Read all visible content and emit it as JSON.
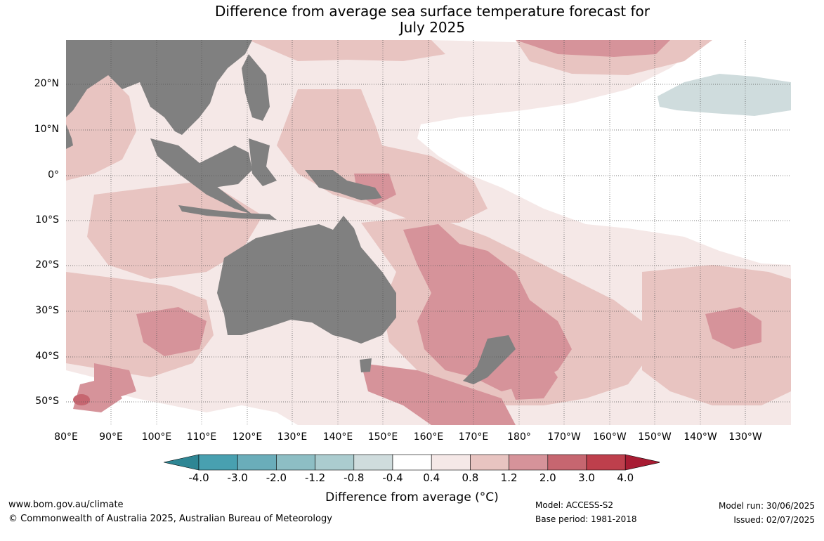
{
  "title_line1": "Difference from average sea surface temperature forecast for",
  "title_line2": "July 2025",
  "lat_labels": [
    "20°N",
    "10°N",
    "0°",
    "10°S",
    "20°S",
    "30°S",
    "40°S",
    "50°S"
  ],
  "lon_labels": [
    "80°E",
    "90°E",
    "100°E",
    "110°E",
    "120°E",
    "130°E",
    "140°E",
    "150°E",
    "160°E",
    "170°E",
    "180°",
    "170°W",
    "160°W",
    "150°W",
    "140°W",
    "130°W"
  ],
  "colorbar": {
    "ticks": [
      "-4.0",
      "-3.0",
      "-2.0",
      "-1.2",
      "-0.8",
      "-0.4",
      "0.4",
      "0.8",
      "1.2",
      "2.0",
      "3.0",
      "4.0"
    ],
    "colors": [
      "#2e8694",
      "#48a0b0",
      "#6aadba",
      "#8dbec4",
      "#abcccf",
      "#cfdcdd",
      "#ffffff",
      "#f5e8e7",
      "#e8c4c1",
      "#d6939a",
      "#c66670",
      "#be3f4c",
      "#a81c33"
    ],
    "label": "Difference from average (°C)"
  },
  "map_colors": {
    "land": "#808080",
    "neutral": "#ffffff",
    "warm_slight": "#f5e8e7",
    "warm_moderate": "#e8c4c1",
    "warm_strong": "#d6939a",
    "warm_very_strong": "#c66670",
    "cool_slight": "#cfdcdd"
  },
  "footer": {
    "website": "www.bom.gov.au/climate",
    "copyright": "© Commonwealth of Australia 2025, Australian Bureau of Meteorology",
    "model": "Model: ACCESS-S2",
    "base_period": "Base period: 1981-2018",
    "model_run": "Model run: 30/06/2025",
    "issued": "Issued: 02/07/2025"
  }
}
